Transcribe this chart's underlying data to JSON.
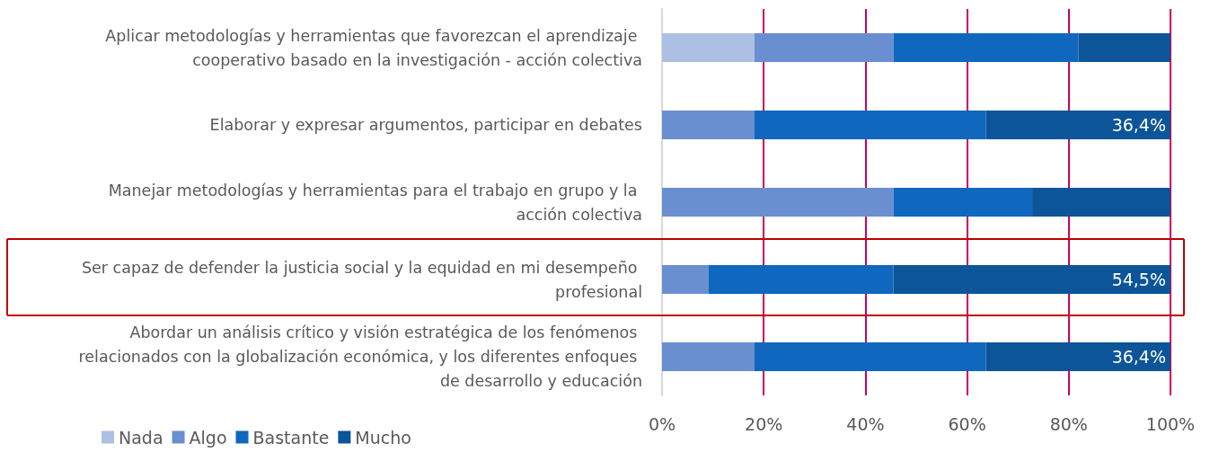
{
  "chart_data": {
    "type": "bar",
    "orientation": "horizontal",
    "stacked": true,
    "categories": [
      "Aplicar metodologías y herramientas que favorezcan el aprendizaje cooperativo basado en la investigación - acción colectiva",
      "Elaborar y expresar argumentos, participar en debates",
      "Manejar metodologías y herramientas para el trabajo en grupo y la acción colectiva",
      "Ser capaz de defender la justicia social y la equidad en mi desempeño profesional",
      "Abordar un análisis crítico y visión estratégica de los fenómenos relacionados con la globalización económica, y los diferentes enfoques de desarrollo y educación"
    ],
    "series": [
      {
        "name": "Nada",
        "color": "#adbfe3",
        "values": [
          18.2,
          0,
          0,
          0,
          0
        ]
      },
      {
        "name": "Algo",
        "color": "#6a8fd0",
        "values": [
          27.3,
          18.2,
          45.5,
          9.1,
          18.2
        ]
      },
      {
        "name": "Bastante",
        "color": "#0f67be",
        "values": [
          36.4,
          45.5,
          27.3,
          36.4,
          45.5
        ]
      },
      {
        "name": "Mucho",
        "color": "#0c5598",
        "values": [
          18.2,
          36.4,
          27.3,
          54.5,
          36.4
        ],
        "value_labels": [
          null,
          "36,4%",
          null,
          "54,5%",
          "36,4%"
        ]
      }
    ],
    "xlim": [
      0,
      100
    ],
    "xticks": [
      {
        "value": 0,
        "label": "0%"
      },
      {
        "value": 20,
        "label": "20%"
      },
      {
        "value": 40,
        "label": "40%"
      },
      {
        "value": 60,
        "label": "60%"
      },
      {
        "value": 80,
        "label": "80%"
      },
      {
        "value": 100,
        "label": "100%"
      }
    ],
    "grid": "x",
    "legend": "bottom left"
  }
}
